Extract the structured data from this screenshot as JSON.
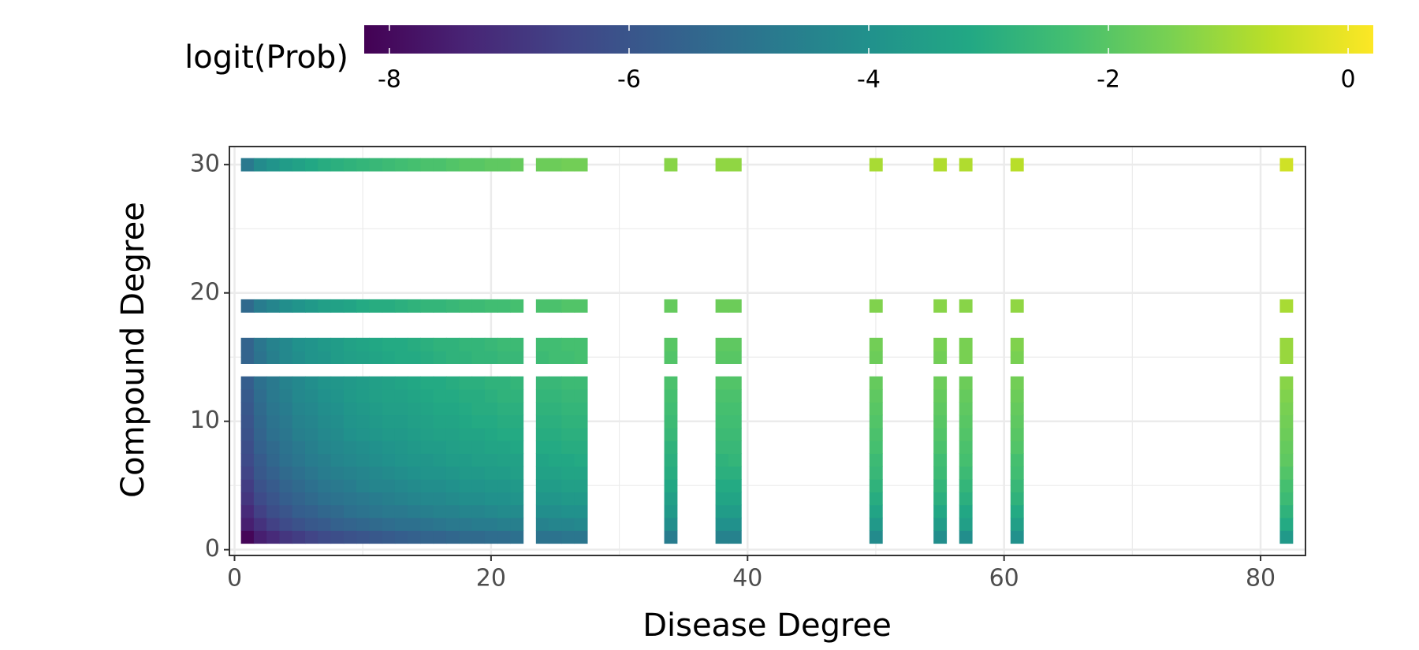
{
  "chart_data": {
    "type": "heatmap",
    "xlabel": "Disease Degree",
    "ylabel": "Compound Degree",
    "colorbar_label": "logit(Prob)",
    "colormap": "viridis",
    "clim": [
      -8.21,
      0.21
    ],
    "cticks": [
      -8,
      -6,
      -4,
      -2,
      0
    ],
    "xlim": [
      -0.4,
      83.5
    ],
    "ylim": [
      -0.45,
      31.4
    ],
    "xticks": [
      0,
      20,
      40,
      60,
      80
    ],
    "yticks": [
      0,
      10,
      20,
      30
    ],
    "grid": true,
    "x": [
      1,
      2,
      3,
      4,
      5,
      6,
      7,
      8,
      9,
      10,
      11,
      12,
      13,
      14,
      15,
      16,
      17,
      18,
      19,
      20,
      21,
      22,
      24,
      25,
      26,
      27,
      34,
      38,
      39,
      50,
      55,
      57,
      61,
      82
    ],
    "y": [
      1,
      2,
      3,
      4,
      5,
      6,
      7,
      8,
      9,
      10,
      11,
      12,
      13,
      15,
      16,
      19,
      30
    ],
    "z": [
      [
        -8.1,
        -7.5,
        -7.2,
        -6.9,
        -6.7,
        -6.5,
        -6.3,
        -6.2,
        -6.1,
        -6.0,
        -5.9,
        -5.8,
        -5.7,
        -5.6,
        -5.5,
        -5.5,
        -5.4,
        -5.3,
        -5.3,
        -5.2,
        -5.2,
        -5.1,
        -5.0,
        -5.0,
        -4.9,
        -4.9,
        -4.7,
        -4.5,
        -4.5,
        -4.2,
        -4.1,
        -4.1,
        -4.0,
        -3.7
      ],
      [
        -7.5,
        -7.0,
        -6.6,
        -6.3,
        -6.1,
        -5.9,
        -5.8,
        -5.6,
        -5.5,
        -5.4,
        -5.3,
        -5.2,
        -5.1,
        -5.1,
        -5.0,
        -4.9,
        -4.8,
        -4.8,
        -4.7,
        -4.7,
        -4.6,
        -4.6,
        -4.5,
        -4.4,
        -4.4,
        -4.3,
        -4.1,
        -4.0,
        -4.0,
        -3.7,
        -3.6,
        -3.5,
        -3.5,
        -3.1
      ],
      [
        -7.2,
        -6.6,
        -6.2,
        -6.0,
        -5.7,
        -5.6,
        -5.4,
        -5.3,
        -5.1,
        -5.0,
        -4.9,
        -4.8,
        -4.8,
        -4.7,
        -4.6,
        -4.5,
        -4.5,
        -4.4,
        -4.4,
        -4.3,
        -4.2,
        -4.2,
        -4.1,
        -4.1,
        -4.0,
        -4.0,
        -3.7,
        -3.6,
        -3.6,
        -3.3,
        -3.2,
        -3.2,
        -3.1,
        -2.8
      ],
      [
        -6.9,
        -6.3,
        -6.0,
        -5.7,
        -5.5,
        -5.3,
        -5.1,
        -5.0,
        -4.9,
        -4.8,
        -4.7,
        -4.6,
        -4.5,
        -4.4,
        -4.3,
        -4.3,
        -4.2,
        -4.1,
        -4.1,
        -4.0,
        -4.0,
        -3.9,
        -3.8,
        -3.8,
        -3.7,
        -3.7,
        -3.5,
        -3.3,
        -3.3,
        -3.0,
        -2.9,
        -2.9,
        -2.8,
        -2.5
      ],
      [
        -6.7,
        -6.1,
        -5.8,
        -5.5,
        -5.3,
        -5.1,
        -4.9,
        -4.8,
        -4.7,
        -4.5,
        -4.4,
        -4.4,
        -4.3,
        -4.2,
        -4.1,
        -4.1,
        -4.0,
        -3.9,
        -3.9,
        -3.8,
        -3.8,
        -3.7,
        -3.6,
        -3.6,
        -3.5,
        -3.5,
        -3.2,
        -3.1,
        -3.1,
        -2.8,
        -2.7,
        -2.7,
        -2.6,
        -2.3
      ],
      [
        -6.5,
        -5.9,
        -5.6,
        -5.3,
        -5.1,
        -4.9,
        -4.7,
        -4.6,
        -4.5,
        -4.4,
        -4.3,
        -4.2,
        -4.1,
        -4.0,
        -3.9,
        -3.9,
        -3.8,
        -3.7,
        -3.7,
        -3.6,
        -3.6,
        -3.5,
        -3.4,
        -3.4,
        -3.3,
        -3.3,
        -3.0,
        -2.9,
        -2.9,
        -2.6,
        -2.5,
        -2.5,
        -2.4,
        -2.1
      ],
      [
        -6.3,
        -5.8,
        -5.4,
        -5.1,
        -4.9,
        -4.7,
        -4.6,
        -4.4,
        -4.3,
        -4.2,
        -4.1,
        -4.0,
        -3.9,
        -3.8,
        -3.8,
        -3.7,
        -3.6,
        -3.6,
        -3.5,
        -3.5,
        -3.4,
        -3.4,
        -3.3,
        -3.2,
        -3.2,
        -3.1,
        -2.9,
        -2.8,
        -2.7,
        -2.5,
        -2.4,
        -2.3,
        -2.3,
        -1.9
      ],
      [
        -6.2,
        -5.6,
        -5.3,
        -5.0,
        -4.8,
        -4.6,
        -4.4,
        -4.3,
        -4.2,
        -4.1,
        -4.0,
        -3.9,
        -3.8,
        -3.7,
        -3.6,
        -3.6,
        -3.5,
        -3.4,
        -3.4,
        -3.3,
        -3.3,
        -3.2,
        -3.1,
        -3.1,
        -3.0,
        -3.0,
        -2.8,
        -2.6,
        -2.6,
        -2.3,
        -2.2,
        -2.2,
        -2.1,
        -1.8
      ],
      [
        -6.1,
        -5.5,
        -5.1,
        -4.9,
        -4.6,
        -4.5,
        -4.3,
        -4.2,
        -4.0,
        -3.9,
        -3.8,
        -3.7,
        -3.7,
        -3.6,
        -3.5,
        -3.4,
        -3.4,
        -3.3,
        -3.3,
        -3.2,
        -3.1,
        -3.1,
        -3.0,
        -3.0,
        -2.9,
        -2.9,
        -2.6,
        -2.5,
        -2.5,
        -2.2,
        -2.1,
        -2.1,
        -2.0,
        -1.7
      ],
      [
        -6.0,
        -5.4,
        -5.0,
        -4.8,
        -4.5,
        -4.4,
        -4.2,
        -4.1,
        -3.9,
        -3.8,
        -3.7,
        -3.6,
        -3.6,
        -3.5,
        -3.4,
        -3.3,
        -3.3,
        -3.2,
        -3.1,
        -3.1,
        -3.0,
        -3.0,
        -2.9,
        -2.9,
        -2.8,
        -2.8,
        -2.5,
        -2.4,
        -2.4,
        -2.1,
        -2.0,
        -2.0,
        -1.9,
        -1.6
      ],
      [
        -5.9,
        -5.3,
        -4.9,
        -4.7,
        -4.4,
        -4.3,
        -4.1,
        -4.0,
        -3.8,
        -3.7,
        -3.6,
        -3.5,
        -3.5,
        -3.4,
        -3.3,
        -3.2,
        -3.2,
        -3.1,
        -3.0,
        -3.0,
        -2.9,
        -2.9,
        -2.8,
        -2.8,
        -2.7,
        -2.7,
        -2.4,
        -2.3,
        -2.3,
        -2.0,
        -1.9,
        -1.9,
        -1.8,
        -1.5
      ],
      [
        -5.8,
        -5.2,
        -4.8,
        -4.6,
        -4.3,
        -4.2,
        -4.0,
        -3.9,
        -3.7,
        -3.6,
        -3.5,
        -3.4,
        -3.4,
        -3.3,
        -3.2,
        -3.1,
        -3.1,
        -3.0,
        -3.0,
        -2.9,
        -2.8,
        -2.8,
        -2.7,
        -2.7,
        -2.6,
        -2.6,
        -2.3,
        -2.2,
        -2.2,
        -1.9,
        -1.8,
        -1.8,
        -1.7,
        -1.4
      ],
      [
        -5.7,
        -5.1,
        -4.8,
        -4.5,
        -4.3,
        -4.1,
        -3.9,
        -3.8,
        -3.7,
        -3.6,
        -3.5,
        -3.4,
        -3.3,
        -3.2,
        -3.1,
        -3.1,
        -3.0,
        -2.9,
        -2.9,
        -2.8,
        -2.8,
        -2.7,
        -2.6,
        -2.6,
        -2.5,
        -2.5,
        -2.2,
        -2.1,
        -2.1,
        -1.8,
        -1.7,
        -1.7,
        -1.6,
        -1.3
      ],
      [
        -5.5,
        -5.0,
        -4.6,
        -4.3,
        -4.1,
        -3.9,
        -3.8,
        -3.6,
        -3.5,
        -3.4,
        -3.3,
        -3.2,
        -3.1,
        -3.1,
        -3.0,
        -2.9,
        -2.8,
        -2.8,
        -2.7,
        -2.7,
        -2.6,
        -2.6,
        -2.5,
        -2.4,
        -2.4,
        -2.3,
        -2.1,
        -2.0,
        -2.0,
        -1.7,
        -1.6,
        -1.5,
        -1.5,
        -1.1
      ],
      [
        -5.5,
        -4.9,
        -4.5,
        -4.3,
        -4.0,
        -3.9,
        -3.7,
        -3.6,
        -3.4,
        -3.3,
        -3.2,
        -3.1,
        -3.1,
        -3.0,
        -2.9,
        -2.8,
        -2.8,
        -2.7,
        -2.7,
        -2.6,
        -2.5,
        -2.5,
        -2.4,
        -2.4,
        -2.3,
        -2.3,
        -2.0,
        -1.9,
        -1.9,
        -1.6,
        -1.5,
        -1.5,
        -1.4,
        -1.1
      ],
      [
        -5.3,
        -4.7,
        -4.4,
        -4.1,
        -3.9,
        -3.7,
        -3.5,
        -3.4,
        -3.3,
        -3.1,
        -3.0,
        -3.0,
        -2.9,
        -2.8,
        -2.7,
        -2.7,
        -2.6,
        -2.5,
        -2.5,
        -2.4,
        -2.4,
        -2.3,
        -2.2,
        -2.2,
        -2.1,
        -2.1,
        -1.8,
        -1.7,
        -1.7,
        -1.4,
        -1.3,
        -1.3,
        -1.2,
        -0.9
      ],
      [
        -4.8,
        -4.2,
        -3.9,
        -3.6,
        -3.4,
        -3.2,
        -3.0,
        -2.9,
        -2.8,
        -2.7,
        -2.6,
        -2.5,
        -2.4,
        -2.3,
        -2.2,
        -2.2,
        -2.1,
        -2.0,
        -2.0,
        -1.9,
        -1.9,
        -1.8,
        -1.7,
        -1.7,
        -1.6,
        -1.6,
        -1.3,
        -1.2,
        -1.2,
        -0.9,
        -0.8,
        -0.8,
        -0.7,
        -0.4
      ]
    ]
  }
}
